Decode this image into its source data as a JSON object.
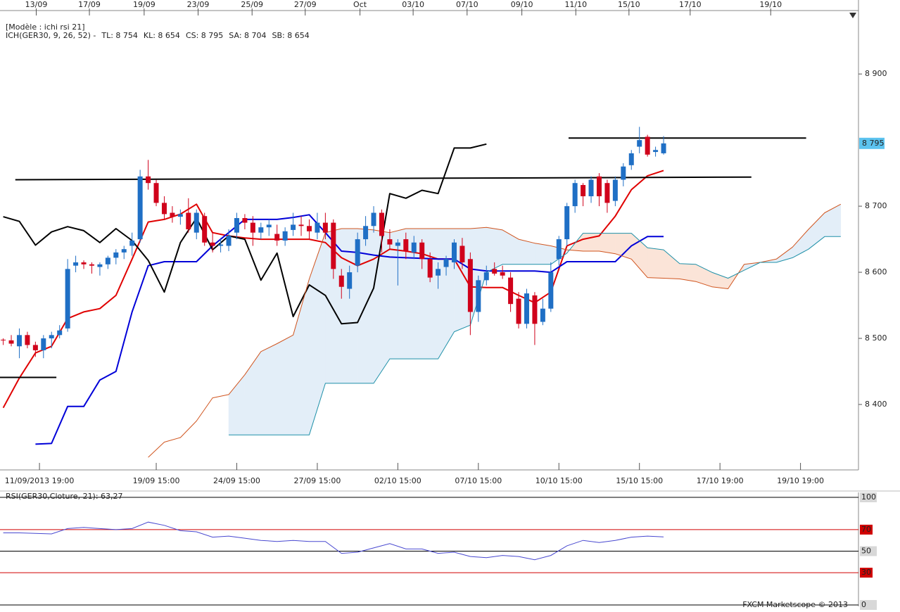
{
  "chart_data": [
    {
      "type": "candlestick",
      "title": "[Modèle : ichi rsi 21]",
      "subtitle": "ICH(GER30, 9, 26, 52) -",
      "legend": [
        {
          "label": "TL: 8 754",
          "color": "#e00000"
        },
        {
          "label": "KL: 8 654",
          "color": "#0000d8"
        },
        {
          "label": "CS: 8 795",
          "color": "#000000"
        },
        {
          "label": "SA: 8 704",
          "color": "#d0541e"
        },
        {
          "label": "SB: 8 654",
          "color": "#1e90c0"
        }
      ],
      "up_color": "#1f6fc5",
      "down_color": "#d0021b",
      "x": [
        0,
        1,
        2,
        3,
        4,
        5,
        6,
        7,
        8,
        9,
        10,
        11,
        12,
        13,
        14,
        15,
        16,
        17,
        18,
        19,
        20,
        21,
        22,
        23,
        24,
        25,
        26,
        27,
        28,
        29,
        30,
        31,
        32,
        33,
        34,
        35,
        36,
        37,
        38,
        39,
        40,
        41,
        42,
        43,
        44,
        45,
        46,
        47,
        48,
        49,
        50,
        51,
        52,
        53,
        54,
        55,
        56,
        57,
        58,
        59,
        60,
        61,
        62,
        63,
        64,
        65,
        66,
        67,
        68,
        69,
        70,
        71,
        72,
        73,
        74,
        75,
        76,
        77,
        78,
        79,
        80,
        81,
        82
      ],
      "open": [
        8498,
        8497,
        8488,
        8505,
        8490,
        8482,
        8500,
        8505,
        8515,
        8610,
        8615,
        8612,
        8608,
        8612,
        8622,
        8630,
        8640,
        8650,
        8745,
        8735,
        8705,
        8690,
        8684,
        8690,
        8660,
        8685,
        8645,
        8640,
        8640,
        8660,
        8682,
        8675,
        8660,
        8668,
        8658,
        8648,
        8664,
        8672,
        8670,
        8660,
        8675,
        8675,
        8595,
        8575,
        8610,
        8650,
        8670,
        8690,
        8650,
        8640,
        8650,
        8630,
        8645,
        8620,
        8595,
        8608,
        8615,
        8640,
        8620,
        8540,
        8588,
        8605,
        8600,
        8592,
        8560,
        8522,
        8565,
        8525,
        8545,
        8620,
        8650,
        8700,
        8732,
        8715,
        8745,
        8735,
        8708,
        8740,
        8762,
        8790,
        8805,
        8782,
        8780
      ],
      "high": [
        8500,
        8505,
        8515,
        8510,
        8495,
        8505,
        8510,
        8520,
        8620,
        8625,
        8618,
        8615,
        8615,
        8625,
        8635,
        8640,
        8660,
        8755,
        8770,
        8740,
        8715,
        8700,
        8695,
        8712,
        8695,
        8690,
        8660,
        8652,
        8665,
        8690,
        8688,
        8685,
        8675,
        8680,
        8672,
        8668,
        8690,
        8685,
        8680,
        8690,
        8690,
        8680,
        8605,
        8610,
        8660,
        8685,
        8700,
        8695,
        8665,
        8650,
        8660,
        8655,
        8650,
        8630,
        8615,
        8625,
        8650,
        8652,
        8630,
        8595,
        8610,
        8615,
        8610,
        8600,
        8570,
        8575,
        8570,
        8560,
        8615,
        8655,
        8705,
        8740,
        8735,
        8745,
        8750,
        8740,
        8745,
        8765,
        8785,
        8820,
        8808,
        8790,
        8806
      ],
      "low": [
        8490,
        8488,
        8470,
        8485,
        8472,
        8470,
        8485,
        8500,
        8510,
        8600,
        8605,
        8598,
        8595,
        8605,
        8612,
        8620,
        8625,
        8645,
        8725,
        8700,
        8680,
        8675,
        8672,
        8660,
        8650,
        8640,
        8630,
        8630,
        8632,
        8650,
        8665,
        8640,
        8650,
        8655,
        8640,
        8640,
        8655,
        8655,
        8650,
        8650,
        8650,
        8590,
        8560,
        8560,
        8600,
        8640,
        8660,
        8630,
        8635,
        8580,
        8620,
        8620,
        8605,
        8585,
        8575,
        8595,
        8605,
        8605,
        8505,
        8525,
        8580,
        8595,
        8590,
        8540,
        8515,
        8515,
        8490,
        8520,
        8540,
        8610,
        8640,
        8690,
        8700,
        8705,
        8700,
        8690,
        8700,
        8730,
        8755,
        8780,
        8775,
        8775,
        8778
      ],
      "close": [
        8497,
        8492,
        8505,
        8490,
        8482,
        8500,
        8505,
        8512,
        8605,
        8615,
        8612,
        8610,
        8612,
        8622,
        8630,
        8635,
        8648,
        8745,
        8735,
        8705,
        8688,
        8684,
        8688,
        8665,
        8690,
        8645,
        8640,
        8642,
        8655,
        8682,
        8675,
        8660,
        8668,
        8672,
        8648,
        8662,
        8672,
        8670,
        8662,
        8675,
        8660,
        8605,
        8578,
        8600,
        8650,
        8670,
        8690,
        8655,
        8642,
        8645,
        8632,
        8645,
        8620,
        8592,
        8605,
        8620,
        8645,
        8615,
        8540,
        8588,
        8600,
        8598,
        8595,
        8552,
        8522,
        8568,
        8522,
        8545,
        8600,
        8650,
        8700,
        8735,
        8715,
        8740,
        8715,
        8705,
        8740,
        8760,
        8780,
        8800,
        8778,
        8785,
        8795
      ],
      "lines": [
        {
          "color": "#e00000",
          "width": 2,
          "x": [
            0,
            2,
            4,
            6,
            8,
            10,
            12,
            14,
            16,
            18,
            20,
            22,
            24,
            26,
            28,
            30,
            32,
            34,
            36,
            38,
            40,
            42,
            44,
            46,
            48,
            50,
            52,
            54,
            56,
            58,
            60,
            62,
            64,
            66,
            68,
            70,
            72,
            74,
            76,
            78,
            80,
            82
          ],
          "values": [
            8395,
            8440,
            8478,
            8488,
            8530,
            8540,
            8545,
            8565,
            8620,
            8676,
            8680,
            8688,
            8703,
            8660,
            8655,
            8652,
            8650,
            8650,
            8650,
            8650,
            8645,
            8622,
            8610,
            8620,
            8635,
            8632,
            8628,
            8620,
            8620,
            8578,
            8577,
            8577,
            8565,
            8554,
            8570,
            8640,
            8650,
            8655,
            8685,
            8725,
            8746,
            8754
          ]
        },
        {
          "color": "#0000d8",
          "width": 2,
          "x": [
            0,
            2,
            4,
            6,
            8,
            10,
            12,
            14,
            16,
            18,
            20,
            22,
            24,
            26,
            28,
            30,
            32,
            34,
            36,
            38,
            40,
            42,
            44,
            46,
            48,
            50,
            52,
            54,
            56,
            58,
            60,
            62,
            64,
            66,
            68,
            70,
            72,
            74,
            76,
            78,
            80,
            82
          ],
          "values": [
            null,
            null,
            8340,
            8341,
            8397,
            8397,
            8437,
            8450,
            8540,
            8610,
            8616,
            8616,
            8616,
            8640,
            8660,
            8680,
            8680,
            8680,
            8683,
            8687,
            8660,
            8632,
            8630,
            8626,
            8623,
            8622,
            8621,
            8620,
            8620,
            8605,
            8602,
            8602,
            8602,
            8602,
            8600,
            8616,
            8616,
            8616,
            8616,
            8640,
            8654,
            8654
          ]
        },
        {
          "color": "#000000",
          "width": 2,
          "x": [
            0,
            2,
            4,
            6,
            8,
            10,
            12,
            14,
            16,
            18,
            20,
            22,
            24,
            26,
            28,
            30,
            32,
            34,
            36,
            38,
            40,
            42,
            44,
            46,
            48,
            50,
            52,
            54,
            56,
            58,
            60
          ],
          "values": [
            8684,
            8677,
            8641,
            8661,
            8669,
            8663,
            8645,
            8666,
            8648,
            8618,
            8570,
            8645,
            8682,
            8634,
            8655,
            8650,
            8588,
            8629,
            8533,
            8581,
            8565,
            8522,
            8524,
            8576,
            8719,
            8712,
            8724,
            8719,
            8788,
            8788,
            8794
          ]
        },
        {
          "color": "#d0541e",
          "width": 1,
          "x": [
            18,
            20,
            22,
            24,
            26,
            28,
            30,
            32,
            34,
            36,
            38,
            40,
            42,
            44,
            46,
            48,
            50,
            52,
            54,
            56,
            58,
            60,
            62,
            64,
            66,
            68,
            70,
            72,
            74,
            76,
            78,
            80,
            82,
            84,
            86,
            88,
            90,
            92,
            94,
            96,
            98,
            100,
            102,
            104
          ],
          "values": [
            8320,
            8343,
            8350,
            8375,
            8410,
            8415,
            8445,
            8480,
            8492,
            8505,
            8590,
            8660,
            8666,
            8666,
            8664,
            8660,
            8666,
            8666,
            8666,
            8666,
            8666,
            8668,
            8664,
            8650,
            8644,
            8640,
            8634,
            8632,
            8632,
            8628,
            8620,
            8592,
            8591,
            8590,
            8586,
            8578,
            8575,
            8612,
            8615,
            8620,
            8638,
            8665,
            8690,
            8703
          ]
        },
        {
          "color": "#1e90a8",
          "width": 1,
          "x": [
            18,
            20,
            22,
            24,
            26,
            28,
            30,
            32,
            34,
            36,
            38,
            40,
            42,
            44,
            46,
            48,
            50,
            52,
            54,
            56,
            58,
            60,
            62,
            64,
            66,
            68,
            70,
            72,
            74,
            76,
            78,
            80,
            82,
            84,
            86,
            88,
            90,
            92,
            94,
            96,
            98,
            100,
            102,
            104
          ],
          "values": [
            null,
            null,
            null,
            null,
            null,
            8354,
            8354,
            8354,
            8354,
            8354,
            8354,
            8432,
            8432,
            8432,
            8432,
            8469,
            8469,
            8469,
            8469,
            8510,
            8520,
            8600,
            8612,
            8612,
            8612,
            8612,
            8629,
            8659,
            8659,
            8659,
            8659,
            8637,
            8634,
            8613,
            8612,
            8600,
            8591,
            8603,
            8615,
            8615,
            8622,
            8635,
            8654,
            8654
          ]
        }
      ],
      "cloud_colors": [
        "#e3eef8",
        "#fbe4d8"
      ],
      "hlines": [
        {
          "x": [
            70.2,
            99.7
          ],
          "values": [
            8803,
            8803
          ]
        },
        {
          "x": [
            1.5,
            92.9
          ],
          "values": [
            8740,
            8744
          ]
        },
        {
          "x": [
            -0.4,
            6.6
          ],
          "values": [
            8441,
            8441
          ]
        }
      ],
      "xlim": [
        -0.4,
        106.2
      ],
      "xticks": [
        {
          "value": 4.5,
          "label": "11/09/2013 19:00"
        },
        {
          "value": 19,
          "label": "19/09 15:00"
        },
        {
          "value": 29,
          "label": "24/09 15:00"
        },
        {
          "value": 39,
          "label": "27/09 15:00"
        },
        {
          "value": 49,
          "label": "02/10 15:00"
        },
        {
          "value": 59,
          "label": "07/10 15:00"
        },
        {
          "value": 69,
          "label": "10/10 15:00"
        },
        {
          "value": 79,
          "label": "15/10 15:00"
        },
        {
          "value": 89,
          "label": "17/10 19:00"
        },
        {
          "value": 99,
          "label": "19/10 19:00"
        }
      ],
      "top_xticks": [
        {
          "value": 4.1,
          "label": "13/09"
        },
        {
          "value": 10.7,
          "label": "17/09"
        },
        {
          "value": 17.5,
          "label": "19/09"
        },
        {
          "value": 24.2,
          "label": "23/09"
        },
        {
          "value": 30.9,
          "label": "25/09"
        },
        {
          "value": 37.5,
          "label": "27/09"
        },
        {
          "value": 44.3,
          "label": "Oct"
        },
        {
          "value": 50.9,
          "label": "03/10"
        },
        {
          "value": 57.6,
          "label": "07/10"
        },
        {
          "value": 64.4,
          "label": "09/10"
        },
        {
          "value": 71.1,
          "label": "11/10"
        },
        {
          "value": 77.7,
          "label": "15/10"
        },
        {
          "value": 85.3,
          "label": "17/10"
        },
        {
          "value": 95.3,
          "label": "19/10"
        }
      ],
      "ylim": [
        8301,
        8980
      ],
      "yticks": [
        {
          "value": 8400,
          "label": "8 400"
        },
        {
          "value": 8500,
          "label": "8 500"
        },
        {
          "value": 8600,
          "label": "8 600"
        },
        {
          "value": 8700,
          "label": "8 700"
        },
        {
          "value": 8900,
          "label": "8 900"
        }
      ],
      "last_price": {
        "value": 8795,
        "label": "8 795",
        "color": "#5cc3ef"
      }
    },
    {
      "type": "line",
      "title": "RSI(GER30,Cloture, 21): 63,27",
      "color": "#4848d0",
      "x": [
        0,
        2,
        4,
        6,
        8,
        10,
        12,
        14,
        16,
        18,
        20,
        22,
        24,
        26,
        28,
        30,
        32,
        34,
        36,
        38,
        40,
        42,
        44,
        46,
        48,
        50,
        52,
        54,
        56,
        58,
        60,
        62,
        64,
        66,
        68,
        70,
        72,
        74,
        76,
        78,
        80,
        82
      ],
      "values": [
        67,
        67,
        66.5,
        66,
        71,
        72,
        71,
        70,
        71,
        77,
        74,
        69,
        68,
        63,
        64,
        62,
        60,
        59,
        60,
        59,
        59,
        48,
        49,
        53,
        57,
        52,
        52,
        48,
        49,
        45,
        44,
        46,
        45,
        42,
        46,
        55,
        60,
        58,
        60,
        63,
        64,
        63.27
      ],
      "xlim": [
        -0.4,
        106.2
      ],
      "ylim": [
        0,
        100
      ],
      "yticks": [
        100,
        70,
        50,
        30,
        0
      ],
      "ytick_colors": [
        "#000000",
        "#d00000",
        "#000000",
        "#d00000",
        "#000000"
      ],
      "footer": "FXCM Marketscope © 2013"
    }
  ]
}
